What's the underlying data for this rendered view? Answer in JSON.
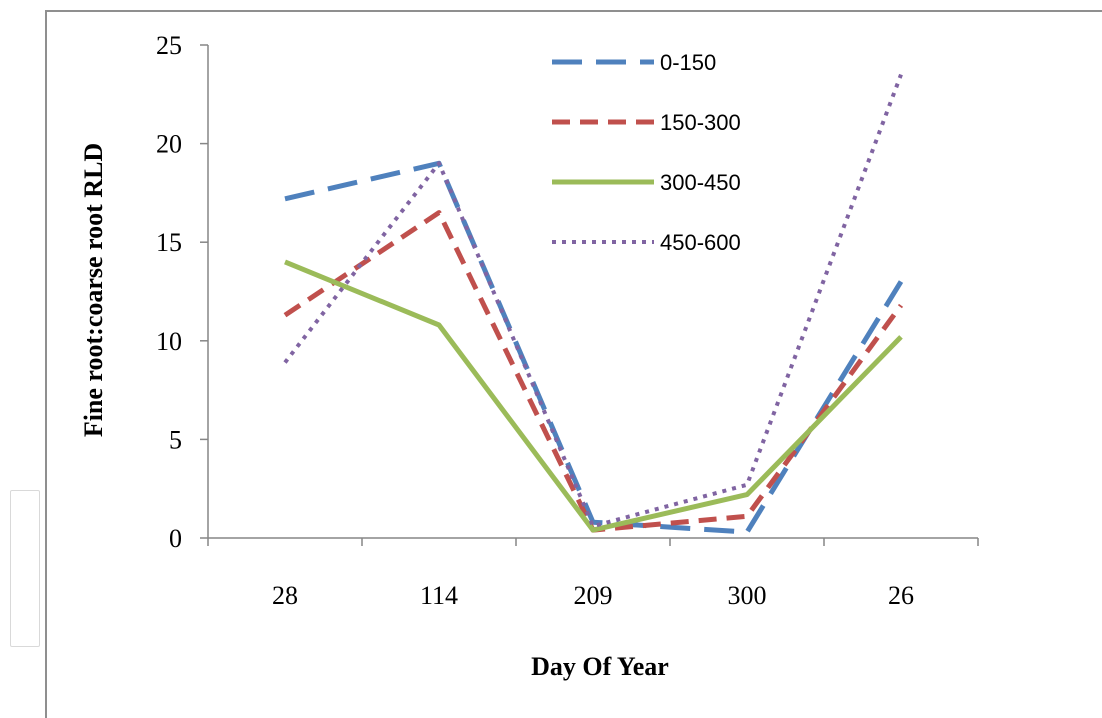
{
  "chart_data": {
    "type": "line",
    "title": "",
    "xlabel": "Day Of Year",
    "ylabel": "Fine root:coarse root RLD",
    "categories": [
      "28",
      "114",
      "209",
      "300",
      "26"
    ],
    "ylim": [
      0,
      25
    ],
    "yticks": [
      0,
      5,
      10,
      15,
      20,
      25
    ],
    "grid": false,
    "legend_position": "top-right",
    "series": [
      {
        "name": "0-150",
        "values": [
          17.2,
          19.0,
          0.8,
          0.3,
          13.0
        ],
        "color": "#4f81bd",
        "style": "long-dash"
      },
      {
        "name": "150-300",
        "values": [
          11.3,
          16.5,
          0.4,
          1.1,
          11.8
        ],
        "color": "#c0504d",
        "style": "dash"
      },
      {
        "name": "300-450",
        "values": [
          14.0,
          10.8,
          0.4,
          2.2,
          10.2
        ],
        "color": "#9bbb59",
        "style": "solid"
      },
      {
        "name": "450-600",
        "values": [
          8.9,
          19.0,
          0.6,
          2.7,
          23.5
        ],
        "color": "#8064a2",
        "style": "dot"
      }
    ]
  }
}
